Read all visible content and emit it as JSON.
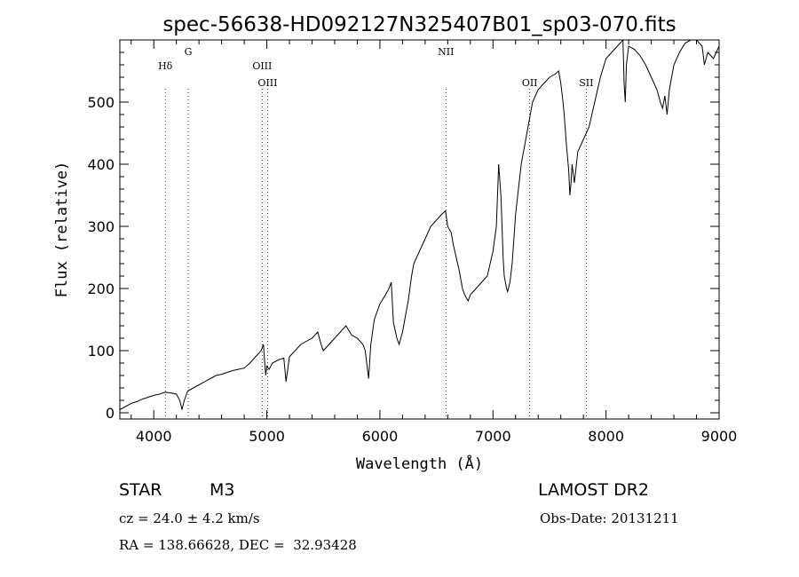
{
  "chart_data": {
    "type": "line",
    "title": "spec-56638-HD092127N325407B01_sp03-070.fits",
    "xlabel": "Wavelength (Å)",
    "ylabel": "Flux (relative)",
    "xlim": [
      3700,
      9000
    ],
    "ylim": [
      -10,
      600
    ],
    "x_ticks": [
      4000,
      5000,
      6000,
      7000,
      8000,
      9000
    ],
    "x_tick_labels": [
      "4000",
      "5000",
      "6000",
      "7000",
      "8000",
      "9000"
    ],
    "y_ticks": [
      0,
      100,
      200,
      300,
      400,
      500
    ],
    "y_tick_labels": [
      "0",
      "100",
      "200",
      "300",
      "400",
      "500"
    ],
    "grid": false,
    "series": [
      {
        "name": "flux",
        "x": [
          3700,
          3750,
          3800,
          3850,
          3900,
          3950,
          4000,
          4050,
          4100,
          4150,
          4200,
          4230,
          4250,
          4270,
          4300,
          4350,
          4400,
          4450,
          4500,
          4550,
          4600,
          4650,
          4700,
          4750,
          4800,
          4850,
          4900,
          4950,
          4970,
          4990,
          5000,
          5020,
          5050,
          5100,
          5150,
          5170,
          5200,
          5250,
          5300,
          5350,
          5400,
          5450,
          5480,
          5500,
          5550,
          5600,
          5650,
          5700,
          5750,
          5800,
          5850,
          5870,
          5890,
          5900,
          5920,
          5950,
          6000,
          6050,
          6080,
          6100,
          6120,
          6150,
          6170,
          6200,
          6250,
          6280,
          6300,
          6350,
          6400,
          6450,
          6500,
          6550,
          6580,
          6600,
          6630,
          6650,
          6700,
          6730,
          6750,
          6780,
          6800,
          6850,
          6900,
          6950,
          7000,
          7030,
          7050,
          7070,
          7080,
          7090,
          7100,
          7120,
          7130,
          7150,
          7170,
          7200,
          7250,
          7300,
          7350,
          7400,
          7450,
          7500,
          7550,
          7580,
          7600,
          7620,
          7630,
          7650,
          7670,
          7680,
          7690,
          7700,
          7720,
          7750,
          7800,
          7850,
          7900,
          7950,
          8000,
          8050,
          8100,
          8150,
          8160,
          8170,
          8180,
          8200,
          8250,
          8300,
          8350,
          8400,
          8450,
          8480,
          8500,
          8520,
          8540,
          8550,
          8560,
          8580,
          8600,
          8650,
          8700,
          8750,
          8800,
          8850,
          8870,
          8900,
          8950,
          9000
        ],
        "y": [
          5,
          10,
          15,
          18,
          22,
          25,
          28,
          30,
          33,
          32,
          30,
          20,
          5,
          20,
          35,
          40,
          45,
          50,
          55,
          60,
          62,
          65,
          68,
          70,
          72,
          80,
          90,
          100,
          110,
          60,
          75,
          70,
          80,
          85,
          88,
          50,
          90,
          100,
          110,
          115,
          120,
          130,
          110,
          100,
          110,
          120,
          130,
          140,
          125,
          120,
          110,
          100,
          70,
          55,
          110,
          150,
          175,
          190,
          200,
          210,
          145,
          120,
          110,
          130,
          180,
          220,
          240,
          260,
          280,
          300,
          310,
          320,
          325,
          300,
          290,
          270,
          230,
          200,
          190,
          180,
          190,
          200,
          210,
          220,
          260,
          300,
          400,
          350,
          300,
          250,
          220,
          200,
          195,
          210,
          240,
          320,
          400,
          450,
          500,
          520,
          530,
          540,
          545,
          550,
          530,
          500,
          480,
          430,
          390,
          350,
          370,
          400,
          370,
          420,
          440,
          460,
          500,
          540,
          570,
          580,
          590,
          600,
          530,
          500,
          560,
          590,
          585,
          575,
          560,
          540,
          520,
          500,
          490,
          510,
          480,
          500,
          520,
          540,
          560,
          580,
          595,
          600,
          600,
          590,
          560,
          580,
          570,
          590
        ]
      }
    ],
    "annotations": [
      {
        "label": "Hδ",
        "x": 4102
      },
      {
        "label": "G",
        "x": 4305
      },
      {
        "label": "OIII",
        "x": 4959
      },
      {
        "label": "OIII",
        "x": 5007
      },
      {
        "label": "NII",
        "x": 6584
      },
      {
        "label": "OII",
        "x": 7325
      },
      {
        "label": "SII",
        "x": 7825
      }
    ]
  },
  "info": {
    "object_type": "STAR",
    "subclass": "M3",
    "survey": "LAMOST DR2",
    "cz": "cz = 24.0 ± 4.2 km/s",
    "obs_date": "Obs-Date: 20131211",
    "radec": "RA = 138.66628, DEC =  32.93428"
  }
}
